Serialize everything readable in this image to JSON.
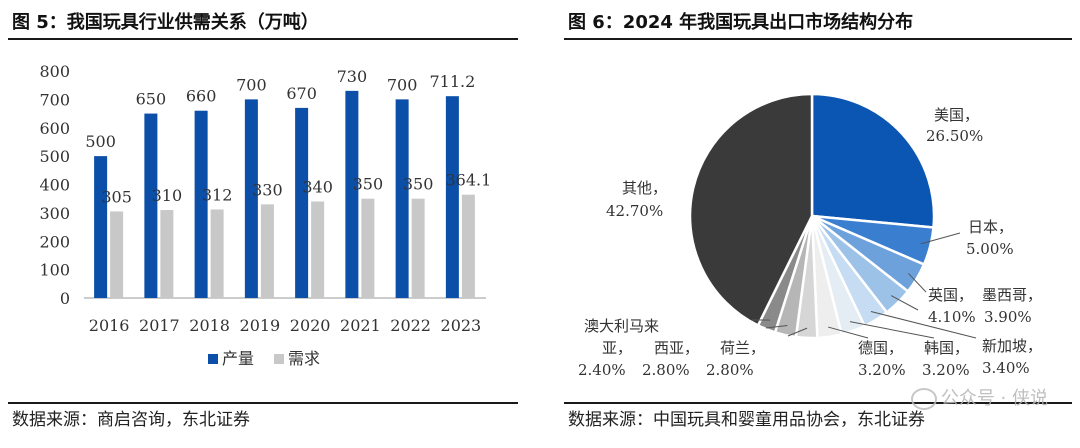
{
  "left": {
    "title": "图 5：我国玩具行业供需关系（万吨）",
    "source": "数据来源：商启咨询，东北证券"
  },
  "right": {
    "title": "图 6：2024 年我国玩具出口市场结构分布",
    "source": "数据来源：中国玩具和婴童用品协会，东北证券"
  },
  "watermark": "公众号 · 侠说",
  "chart_data": [
    {
      "type": "bar",
      "title": "图 5：我国玩具行业供需关系（万吨）",
      "categories": [
        "2016",
        "2017",
        "2018",
        "2019",
        "2020",
        "2021",
        "2022",
        "2023"
      ],
      "series": [
        {
          "name": "产量",
          "values": [
            500,
            650,
            660,
            700,
            670,
            730,
            700,
            711.2
          ],
          "labels": [
            "500",
            "650",
            "660",
            "700",
            "670",
            "730",
            "700",
            "711.2"
          ],
          "color": "#0b4fa8"
        },
        {
          "name": "需求",
          "values": [
            305,
            310,
            312,
            330,
            340,
            350,
            350,
            364.1
          ],
          "labels": [
            "305",
            "310",
            "312",
            "330",
            "340",
            "350",
            "350",
            "364.1"
          ],
          "color": "#c8c8c8"
        }
      ],
      "yticks": [
        "0",
        "100",
        "200",
        "300",
        "400",
        "500",
        "600",
        "700",
        "800"
      ],
      "ylim": [
        0,
        800
      ],
      "legend": "bottom",
      "grid": false
    },
    {
      "type": "pie",
      "title": "图 6：2024 年我国玩具出口市场结构分布",
      "slices": [
        {
          "name": "美国",
          "value": 26.5,
          "label": "26.50%",
          "color": "#0b56b3"
        },
        {
          "name": "日本",
          "value": 5.0,
          "label": "5.00%",
          "color": "#3a7fcf"
        },
        {
          "name": "英国",
          "value": 4.1,
          "label": "4.10%",
          "color": "#6da1dc"
        },
        {
          "name": "墨西哥",
          "value": 3.9,
          "label": "3.90%",
          "color": "#9dc2e8"
        },
        {
          "name": "新加坡",
          "value": 3.4,
          "label": "3.40%",
          "color": "#c6dcf2"
        },
        {
          "name": "韩国",
          "value": 3.2,
          "label": "3.20%",
          "color": "#e4ecf4"
        },
        {
          "name": "德国",
          "value": 3.2,
          "label": "3.20%",
          "color": "#eeeeee"
        },
        {
          "name": "荷兰",
          "value": 2.8,
          "label": "2.80%",
          "color": "#d6d6d6"
        },
        {
          "name": "西亚",
          "value": 2.8,
          "label": "2.80%",
          "color": "#b6b6b6"
        },
        {
          "name": "澳大利马来亚",
          "value": 2.4,
          "label": "2.40%",
          "color": "#8a8a8a"
        },
        {
          "name": "其他",
          "value": 42.7,
          "label": "42.70%",
          "color": "#3a3a3a"
        }
      ],
      "label_texts": {
        "us": "美国，",
        "jp": "日本，",
        "uk": "英国，",
        "mx": "墨西哥，",
        "sg": "新加坡，",
        "kr": "韩国，",
        "de": "德国，",
        "nl": "荷兰，",
        "wa": "西亚，",
        "my_line1": "澳大利马来",
        "my_line2": "亚，",
        "other": "其他，"
      }
    }
  ]
}
